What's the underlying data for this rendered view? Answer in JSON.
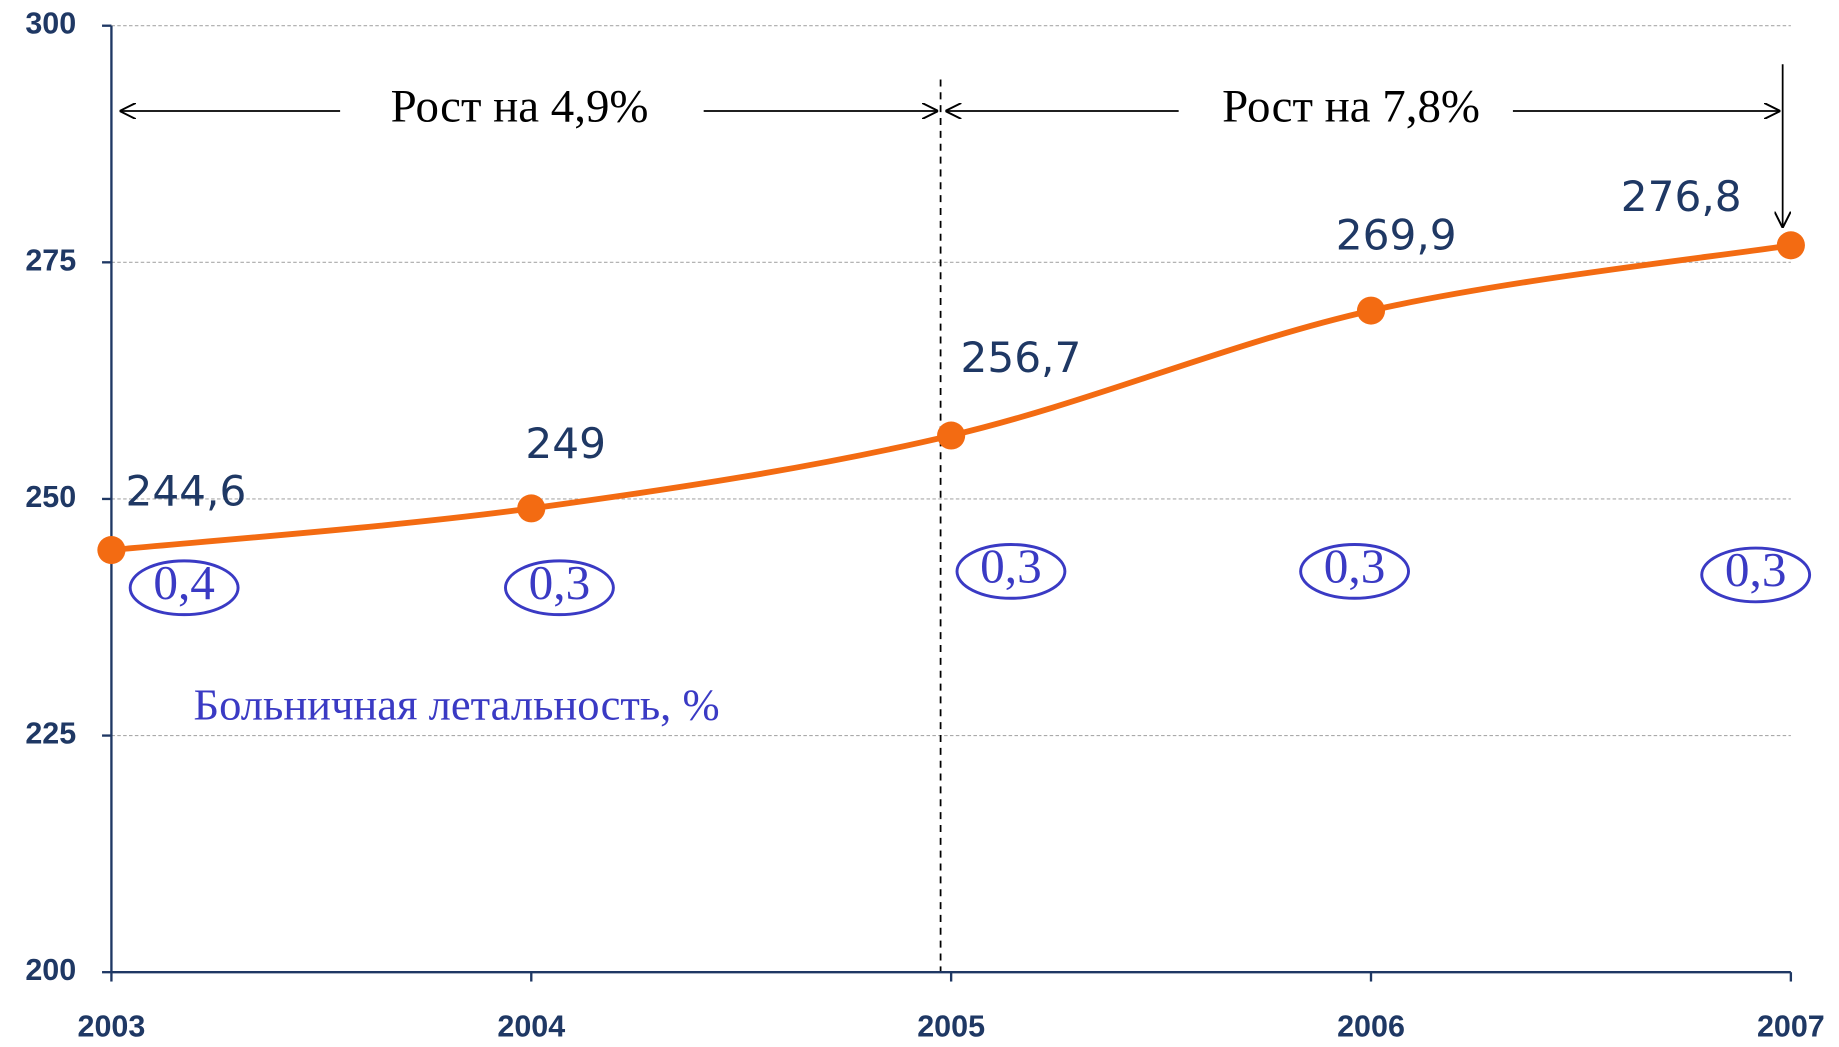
{
  "chart_data": {
    "type": "line",
    "categories": [
      "2003",
      "2004",
      "2005",
      "2006",
      "2007"
    ],
    "series": [
      {
        "name": "",
        "color": "#f36b12",
        "values": [
          244.6,
          249,
          256.7,
          269.9,
          276.8
        ],
        "value_labels": [
          "244,6",
          "249",
          "256,7",
          "269,9",
          "276,8"
        ]
      }
    ],
    "lethality": {
      "name": "Больничная летальность, %",
      "color": "#3a3ac4",
      "values": [
        0.4,
        0.3,
        0.3,
        0.3,
        0.3
      ],
      "value_labels": [
        "0,4",
        "0,3",
        "0,3",
        "0,3",
        "0,3"
      ]
    },
    "annotations": [
      "Рост на 4,9%",
      "Рост на 7,8%"
    ],
    "ylim": [
      200,
      300
    ],
    "yticks": [
      200,
      225,
      250,
      275,
      300
    ],
    "grid": true
  }
}
